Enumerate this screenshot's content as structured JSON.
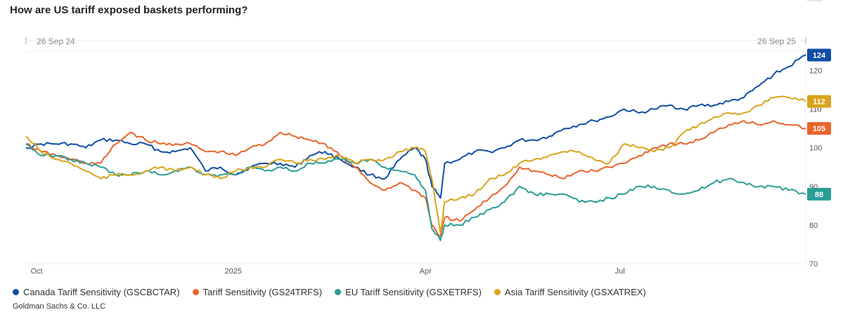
{
  "title": "How are US tariff exposed baskets performing?",
  "range": {
    "start": "26 Sep 24",
    "end": "26 Sep 25"
  },
  "source": "Goldman Sachs & Co. LLC",
  "chart_data": {
    "type": "line",
    "title": "How are US tariff exposed baskets performing?",
    "x_range": [
      "2024-09-26",
      "2025-09-26"
    ],
    "x_ticks": [
      {
        "label": "Oct",
        "date": "2024-10-01"
      },
      {
        "label": "2025",
        "date": "2025-01-01"
      },
      {
        "label": "Apr",
        "date": "2025-04-01"
      },
      {
        "label": "Jul",
        "date": "2025-07-01"
      }
    ],
    "ylim": [
      70,
      125
    ],
    "y_ticks": [
      70,
      80,
      90,
      100,
      110,
      120
    ],
    "y_axis_position": "right",
    "legend_position": "bottom",
    "grid": false,
    "series": [
      {
        "name": "Canada Tariff Sensitivity (GSCBCTAR)",
        "color": "#0e4ea6",
        "end_label": "124",
        "points": [
          [
            "2024-09-26",
            100
          ],
          [
            "2024-10-03",
            101
          ],
          [
            "2024-10-10",
            101
          ],
          [
            "2024-10-17",
            101
          ],
          [
            "2024-10-24",
            100
          ],
          [
            "2024-10-31",
            102
          ],
          [
            "2024-11-07",
            102
          ],
          [
            "2024-11-14",
            101
          ],
          [
            "2024-11-21",
            101
          ],
          [
            "2024-11-28",
            99
          ],
          [
            "2024-12-05",
            99
          ],
          [
            "2024-12-12",
            100
          ],
          [
            "2024-12-19",
            94
          ],
          [
            "2024-12-26",
            95
          ],
          [
            "2025-01-02",
            93
          ],
          [
            "2025-01-09",
            95
          ],
          [
            "2025-01-16",
            96
          ],
          [
            "2025-01-23",
            96
          ],
          [
            "2025-01-30",
            95
          ],
          [
            "2025-02-06",
            98
          ],
          [
            "2025-02-13",
            99
          ],
          [
            "2025-02-20",
            97
          ],
          [
            "2025-02-27",
            95
          ],
          [
            "2025-03-06",
            93
          ],
          [
            "2025-03-13",
            92
          ],
          [
            "2025-03-20",
            97
          ],
          [
            "2025-03-27",
            100
          ],
          [
            "2025-04-01",
            97
          ],
          [
            "2025-04-04",
            90
          ],
          [
            "2025-04-08",
            87
          ],
          [
            "2025-04-10",
            96
          ],
          [
            "2025-04-17",
            97
          ],
          [
            "2025-04-24",
            99
          ],
          [
            "2025-05-01",
            99
          ],
          [
            "2025-05-08",
            100
          ],
          [
            "2025-05-15",
            102
          ],
          [
            "2025-05-22",
            102
          ],
          [
            "2025-05-29",
            103
          ],
          [
            "2025-06-05",
            105
          ],
          [
            "2025-06-12",
            106
          ],
          [
            "2025-06-19",
            107
          ],
          [
            "2025-06-26",
            108
          ],
          [
            "2025-07-03",
            110
          ],
          [
            "2025-07-10",
            109
          ],
          [
            "2025-07-17",
            110
          ],
          [
            "2025-07-24",
            111
          ],
          [
            "2025-07-31",
            110
          ],
          [
            "2025-08-07",
            111
          ],
          [
            "2025-08-14",
            111
          ],
          [
            "2025-08-21",
            112
          ],
          [
            "2025-08-28",
            113
          ],
          [
            "2025-09-04",
            116
          ],
          [
            "2025-09-11",
            119
          ],
          [
            "2025-09-18",
            121
          ],
          [
            "2025-09-26",
            124
          ]
        ]
      },
      {
        "name": "Tariff Sensitivity (GS24TRFS)",
        "color": "#e9632a",
        "end_label": "105",
        "points": [
          [
            "2024-09-26",
            101
          ],
          [
            "2024-10-03",
            99
          ],
          [
            "2024-10-10",
            98
          ],
          [
            "2024-10-17",
            97
          ],
          [
            "2024-10-24",
            96
          ],
          [
            "2024-10-31",
            96
          ],
          [
            "2024-11-07",
            101
          ],
          [
            "2024-11-14",
            104
          ],
          [
            "2024-11-21",
            102
          ],
          [
            "2024-11-28",
            101
          ],
          [
            "2024-12-05",
            101
          ],
          [
            "2024-12-12",
            101
          ],
          [
            "2024-12-19",
            99
          ],
          [
            "2024-12-26",
            99
          ],
          [
            "2025-01-02",
            98
          ],
          [
            "2025-01-09",
            100
          ],
          [
            "2025-01-16",
            101
          ],
          [
            "2025-01-23",
            104
          ],
          [
            "2025-01-30",
            103
          ],
          [
            "2025-02-06",
            102
          ],
          [
            "2025-02-13",
            101
          ],
          [
            "2025-02-20",
            98
          ],
          [
            "2025-02-27",
            95
          ],
          [
            "2025-03-06",
            91
          ],
          [
            "2025-03-13",
            89
          ],
          [
            "2025-03-20",
            91
          ],
          [
            "2025-03-27",
            89
          ],
          [
            "2025-04-01",
            87
          ],
          [
            "2025-04-04",
            80
          ],
          [
            "2025-04-08",
            77
          ],
          [
            "2025-04-10",
            82
          ],
          [
            "2025-04-17",
            81
          ],
          [
            "2025-04-24",
            84
          ],
          [
            "2025-05-01",
            87
          ],
          [
            "2025-05-08",
            90
          ],
          [
            "2025-05-15",
            95
          ],
          [
            "2025-05-22",
            94
          ],
          [
            "2025-05-29",
            93
          ],
          [
            "2025-06-05",
            92
          ],
          [
            "2025-06-12",
            94
          ],
          [
            "2025-06-19",
            94
          ],
          [
            "2025-06-26",
            95
          ],
          [
            "2025-07-03",
            96
          ],
          [
            "2025-07-10",
            98
          ],
          [
            "2025-07-17",
            100
          ],
          [
            "2025-07-24",
            101
          ],
          [
            "2025-07-31",
            101
          ],
          [
            "2025-08-07",
            102
          ],
          [
            "2025-08-14",
            104
          ],
          [
            "2025-08-21",
            106
          ],
          [
            "2025-08-28",
            107
          ],
          [
            "2025-09-04",
            106
          ],
          [
            "2025-09-11",
            107
          ],
          [
            "2025-09-18",
            106
          ],
          [
            "2025-09-26",
            105
          ]
        ]
      },
      {
        "name": "EU Tariff Sensitivity (GSXETRFS)",
        "color": "#2a9d96",
        "end_label": "88",
        "points": [
          [
            "2024-09-26",
            101
          ],
          [
            "2024-10-03",
            98
          ],
          [
            "2024-10-10",
            98
          ],
          [
            "2024-10-17",
            97
          ],
          [
            "2024-10-24",
            96
          ],
          [
            "2024-10-31",
            95
          ],
          [
            "2024-11-07",
            93
          ],
          [
            "2024-11-14",
            93
          ],
          [
            "2024-11-21",
            94
          ],
          [
            "2024-11-28",
            93
          ],
          [
            "2024-12-05",
            94
          ],
          [
            "2024-12-12",
            95
          ],
          [
            "2024-12-19",
            93
          ],
          [
            "2024-12-26",
            93
          ],
          [
            "2025-01-02",
            93
          ],
          [
            "2025-01-09",
            95
          ],
          [
            "2025-01-16",
            94
          ],
          [
            "2025-01-23",
            95
          ],
          [
            "2025-01-30",
            94
          ],
          [
            "2025-02-06",
            96
          ],
          [
            "2025-02-13",
            96
          ],
          [
            "2025-02-20",
            97
          ],
          [
            "2025-02-27",
            96
          ],
          [
            "2025-03-06",
            97
          ],
          [
            "2025-03-13",
            95
          ],
          [
            "2025-03-20",
            94
          ],
          [
            "2025-03-27",
            93
          ],
          [
            "2025-04-01",
            89
          ],
          [
            "2025-04-04",
            79
          ],
          [
            "2025-04-08",
            76
          ],
          [
            "2025-04-10",
            80
          ],
          [
            "2025-04-17",
            80
          ],
          [
            "2025-04-24",
            82
          ],
          [
            "2025-05-01",
            84
          ],
          [
            "2025-05-08",
            86
          ],
          [
            "2025-05-15",
            90
          ],
          [
            "2025-05-22",
            88
          ],
          [
            "2025-05-29",
            88
          ],
          [
            "2025-06-05",
            88
          ],
          [
            "2025-06-12",
            86
          ],
          [
            "2025-06-19",
            86
          ],
          [
            "2025-06-26",
            87
          ],
          [
            "2025-07-03",
            88
          ],
          [
            "2025-07-10",
            90
          ],
          [
            "2025-07-17",
            90
          ],
          [
            "2025-07-24",
            89
          ],
          [
            "2025-07-31",
            88
          ],
          [
            "2025-08-07",
            89
          ],
          [
            "2025-08-14",
            91
          ],
          [
            "2025-08-21",
            92
          ],
          [
            "2025-08-28",
            91
          ],
          [
            "2025-09-04",
            90
          ],
          [
            "2025-09-11",
            90
          ],
          [
            "2025-09-18",
            89
          ],
          [
            "2025-09-26",
            88
          ]
        ]
      },
      {
        "name": "Asia Tariff Sensitivity (GSXATREX)",
        "color": "#d9a31c",
        "end_label": "112",
        "points": [
          [
            "2024-09-26",
            103
          ],
          [
            "2024-10-03",
            99
          ],
          [
            "2024-10-10",
            97
          ],
          [
            "2024-10-17",
            96
          ],
          [
            "2024-10-24",
            94
          ],
          [
            "2024-10-31",
            92
          ],
          [
            "2024-11-07",
            93
          ],
          [
            "2024-11-14",
            93
          ],
          [
            "2024-11-21",
            94
          ],
          [
            "2024-11-28",
            95
          ],
          [
            "2024-12-05",
            94
          ],
          [
            "2024-12-12",
            95
          ],
          [
            "2024-12-19",
            93
          ],
          [
            "2024-12-26",
            92
          ],
          [
            "2025-01-02",
            94
          ],
          [
            "2025-01-09",
            95
          ],
          [
            "2025-01-16",
            95
          ],
          [
            "2025-01-23",
            97
          ],
          [
            "2025-01-30",
            96
          ],
          [
            "2025-02-06",
            97
          ],
          [
            "2025-02-13",
            97
          ],
          [
            "2025-02-20",
            98
          ],
          [
            "2025-02-27",
            96
          ],
          [
            "2025-03-06",
            97
          ],
          [
            "2025-03-13",
            97
          ],
          [
            "2025-03-20",
            99
          ],
          [
            "2025-03-27",
            100
          ],
          [
            "2025-04-01",
            99
          ],
          [
            "2025-04-04",
            92
          ],
          [
            "2025-04-08",
            78
          ],
          [
            "2025-04-10",
            86
          ],
          [
            "2025-04-17",
            87
          ],
          [
            "2025-04-24",
            88
          ],
          [
            "2025-05-01",
            92
          ],
          [
            "2025-05-08",
            93
          ],
          [
            "2025-05-15",
            96
          ],
          [
            "2025-05-22",
            97
          ],
          [
            "2025-05-29",
            98
          ],
          [
            "2025-06-05",
            99
          ],
          [
            "2025-06-12",
            99
          ],
          [
            "2025-06-19",
            97
          ],
          [
            "2025-06-26",
            96
          ],
          [
            "2025-07-03",
            101
          ],
          [
            "2025-07-10",
            100
          ],
          [
            "2025-07-17",
            99
          ],
          [
            "2025-07-24",
            100
          ],
          [
            "2025-07-31",
            104
          ],
          [
            "2025-08-07",
            106
          ],
          [
            "2025-08-14",
            108
          ],
          [
            "2025-08-21",
            109
          ],
          [
            "2025-08-28",
            109
          ],
          [
            "2025-09-04",
            111
          ],
          [
            "2025-09-11",
            113
          ],
          [
            "2025-09-18",
            113
          ],
          [
            "2025-09-26",
            112
          ]
        ]
      }
    ]
  }
}
